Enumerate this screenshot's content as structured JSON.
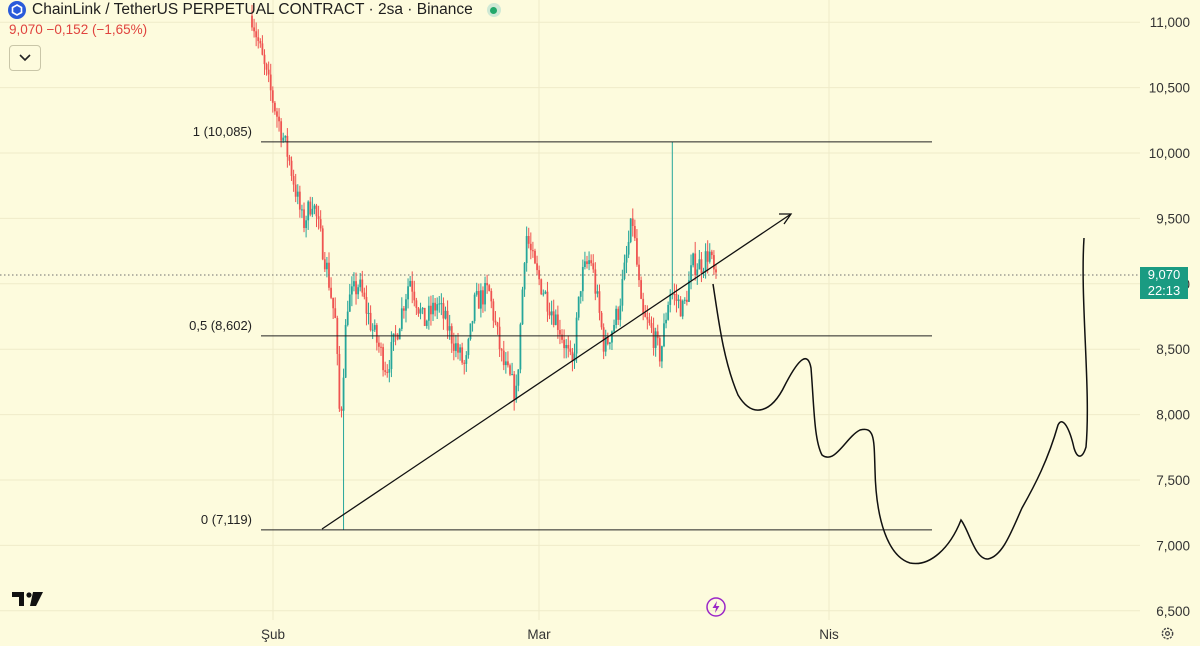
{
  "header": {
    "title": "ChainLink / TetherUS PERPETUAL CONTRACT · 2sa · Binance",
    "price_line": "9,070 −0,152 (−1,65%)",
    "logo_icon": "chainlink-logo-icon",
    "status_icon": "live-status-dot-icon",
    "collapse_icon": "chevron-down-icon"
  },
  "price_badge": {
    "price": "9,070",
    "countdown": "22:13",
    "color": "#1a9b82"
  },
  "colors": {
    "background": "#fdfbdd",
    "up": "#26a69a",
    "down": "#ef5350",
    "drawing": "#111111"
  },
  "footer": {
    "brand_icon": "tradingview-logo-icon",
    "bolt_icon": "lightning-icon",
    "settings_icon": "gear-icon"
  },
  "chart_data": {
    "type": "candlestick",
    "symbol": "LINKUSDT.P",
    "interval": "2sa",
    "y_axis": {
      "ticks": [
        6500,
        7000,
        7500,
        8000,
        8500,
        9000,
        9500,
        10000,
        10500,
        11000
      ],
      "tick_labels": [
        "6,500",
        "7,000",
        "7,500",
        "8,000",
        "8,500",
        "9,000",
        "9,500",
        "10,000",
        "10,500",
        "11,000"
      ],
      "range": [
        6400,
        11150
      ]
    },
    "x_axis": {
      "tick_labels": [
        "Şub",
        "Mar",
        "Nis"
      ]
    },
    "last_price": 9.07,
    "fib_levels": [
      {
        "label": "1 (10,085)",
        "value": 10085
      },
      {
        "label": "0,5 (8,602)",
        "value": 8602
      },
      {
        "label": "0 (7,119)",
        "value": 7119
      }
    ],
    "price_path_anchors": [
      [
        0.0,
        11050
      ],
      [
        0.03,
        10600
      ],
      [
        0.08,
        9950
      ],
      [
        0.11,
        9450
      ],
      [
        0.13,
        9650
      ],
      [
        0.16,
        9150
      ],
      [
        0.18,
        8700
      ],
      [
        0.19,
        7900
      ],
      [
        0.205,
        8850
      ],
      [
        0.23,
        9000
      ],
      [
        0.26,
        8650
      ],
      [
        0.29,
        8350
      ],
      [
        0.31,
        8600
      ],
      [
        0.34,
        9050
      ],
      [
        0.37,
        8700
      ],
      [
        0.4,
        8850
      ],
      [
        0.43,
        8600
      ],
      [
        0.46,
        8350
      ],
      [
        0.48,
        8850
      ],
      [
        0.51,
        8950
      ],
      [
        0.54,
        8400
      ],
      [
        0.57,
        8150
      ],
      [
        0.59,
        9400
      ],
      [
        0.61,
        9100
      ],
      [
        0.64,
        8850
      ],
      [
        0.66,
        8700
      ],
      [
        0.69,
        8350
      ],
      [
        0.71,
        9050
      ],
      [
        0.73,
        9200
      ],
      [
        0.76,
        8500
      ],
      [
        0.79,
        8800
      ],
      [
        0.82,
        9500
      ],
      [
        0.84,
        8750
      ],
      [
        0.86,
        8650
      ],
      [
        0.88,
        8450
      ],
      [
        0.9,
        8950
      ],
      [
        0.93,
        8800
      ],
      [
        0.95,
        9150
      ],
      [
        0.97,
        9150
      ],
      [
        0.985,
        9250
      ],
      [
        1.0,
        9000
      ]
    ],
    "price_path_features": [
      [
        0.0,
        10950
      ],
      [
        0.196,
        7119
      ],
      [
        0.907,
        10085
      ]
    ]
  }
}
